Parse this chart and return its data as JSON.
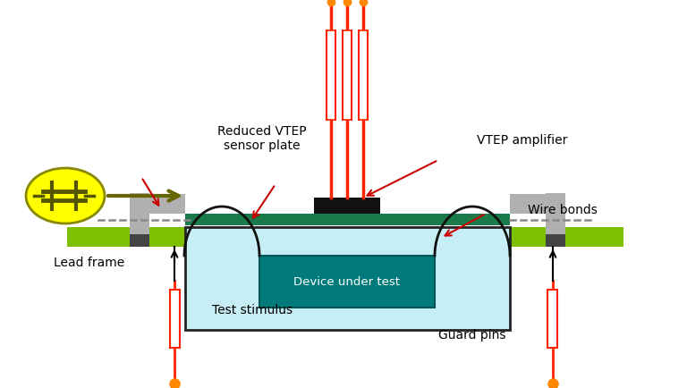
{
  "bg_color": "#ffffff",
  "green_bar_color": "#7dc000",
  "sensor_plate_color": "#1a7a4a",
  "device_box_fill": "#c8eef5",
  "device_inner_color": "#007a7a",
  "lead_frame_color": "#b0b0b0",
  "solder_color": "#444444",
  "yellow_circle_color": "#ffff00",
  "yellow_circle_edge": "#cccc00",
  "cap_symbol_color": "#555500",
  "arrow_body_color": "#666600",
  "wire_color": "#111111",
  "red_wire_color": "#ff2200",
  "orange_dot_color": "#ff8800",
  "annotation_arrow_color": "#cc0000",
  "dashed_color": "#888888",
  "labels": {
    "reduced_vtep": "Reduced VTEP\nsensor plate",
    "vtep_amplifier": "VTEP amplifier",
    "wire_bonds": "Wire bonds",
    "device_under_test": "Device under test",
    "lead_frame": "Lead frame",
    "test_stimulus": "Test stimulus",
    "guard_pins": "Guard pins"
  },
  "figsize": [
    7.68,
    4.35
  ],
  "dpi": 100
}
